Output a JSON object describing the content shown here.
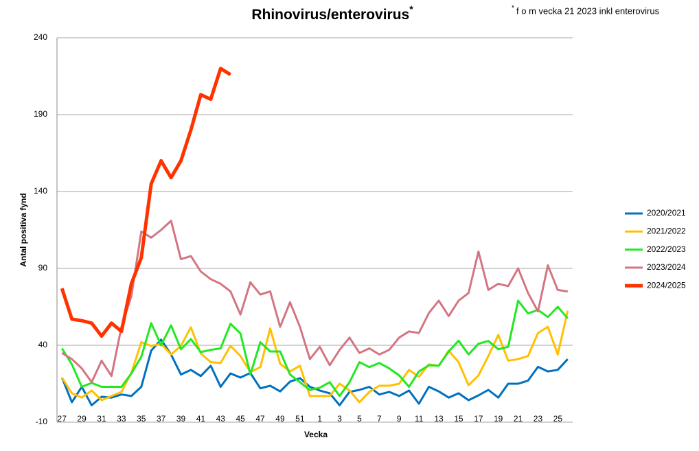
{
  "chart_data": {
    "type": "line",
    "title": "Rhinovirus/enterovirus",
    "title_superscript": "*",
    "note_superscript": "*",
    "note": "f o m vecka 21 2023 inkl  enterovirus",
    "y_label": "Antal positiva fynd",
    "x_label": "Vecka",
    "categories": [
      27,
      null,
      29,
      null,
      31,
      null,
      33,
      null,
      35,
      null,
      37,
      null,
      39,
      null,
      41,
      null,
      43,
      null,
      45,
      null,
      47,
      null,
      49,
      null,
      51,
      null,
      1,
      null,
      3,
      null,
      5,
      null,
      7,
      null,
      9,
      null,
      11,
      null,
      13,
      null,
      15,
      null,
      17,
      null,
      19,
      null,
      21,
      null,
      23,
      null,
      25,
      null
    ],
    "ylim": [
      -10,
      240
    ],
    "yticks": [
      -10,
      40,
      90,
      140,
      190,
      240
    ],
    "grid": true,
    "legend": "right",
    "series": [
      {
        "name": "2020/2021",
        "color": "#0070c0",
        "values": [
          19,
          3,
          13,
          1,
          6.5,
          6,
          8,
          7,
          13,
          36.5,
          43.7,
          34,
          21,
          24,
          20,
          26.7,
          13,
          21.7,
          19,
          22,
          12,
          13.7,
          10,
          16.4,
          18.6,
          13,
          10.6,
          8.8,
          1,
          9.7,
          11,
          13,
          8,
          9.7,
          7,
          10.6,
          2,
          13,
          10,
          6,
          8.8,
          4.3,
          7.4,
          11,
          6,
          15,
          15,
          17,
          26,
          23,
          24,
          31
        ]
      },
      {
        "name": "2021/2022",
        "color": "#ffc000",
        "values": [
          19,
          8.8,
          6,
          10.6,
          4.3,
          7,
          9.7,
          22,
          42,
          39.6,
          41,
          34,
          39.6,
          51.7,
          34.7,
          29,
          28.5,
          39.6,
          33,
          22.6,
          25.8,
          51,
          28,
          23,
          26.7,
          7,
          7,
          7,
          15,
          10.6,
          3,
          9.7,
          13.7,
          13.7,
          15,
          24,
          19.5,
          27.6,
          26.7,
          36.5,
          29,
          14,
          20.4,
          33,
          46.8,
          30,
          31,
          33,
          48,
          52,
          34,
          62.5
        ]
      },
      {
        "name": "2022/2023",
        "color": "#22e822",
        "values": [
          38,
          27.6,
          13,
          15.5,
          13,
          13,
          13,
          21.7,
          32.5,
          54.4,
          40,
          53,
          37.4,
          44,
          35.6,
          37,
          38,
          54,
          47.7,
          21,
          42,
          36,
          36,
          21,
          16,
          11,
          12.4,
          16,
          7,
          16,
          29,
          25.8,
          28.5,
          25,
          20.4,
          13,
          23,
          27,
          26.7,
          36,
          43,
          34,
          41,
          42.8,
          37.4,
          39,
          69,
          60.7,
          63,
          58.4,
          65,
          57.5
        ]
      },
      {
        "name": "2023/2024",
        "color": "#d47582",
        "values": [
          35,
          31,
          25,
          16,
          30,
          20,
          52,
          72,
          114,
          110,
          115,
          121,
          96,
          98,
          88,
          83,
          80,
          75,
          60,
          81,
          73,
          75,
          52,
          68,
          52,
          31,
          39,
          27,
          37,
          45,
          35,
          38,
          34,
          37,
          45,
          49,
          48,
          61,
          69,
          59,
          69,
          74,
          101,
          76,
          80,
          78.5,
          90,
          74,
          62,
          92,
          76,
          75
        ]
      },
      {
        "name": "2024/2025",
        "color": "#ff3300",
        "values": [
          77,
          57,
          56,
          54.4,
          46,
          54.4,
          49,
          80,
          97,
          145,
          160,
          149,
          160,
          180,
          203,
          200,
          220,
          216,
          null,
          null,
          null,
          null,
          null,
          null,
          null,
          null,
          null,
          null,
          null,
          null,
          null,
          null,
          null,
          null,
          null,
          null,
          null,
          null,
          null,
          null,
          null,
          null,
          null,
          null,
          null,
          null,
          null,
          null,
          null,
          null,
          null,
          null
        ]
      }
    ]
  }
}
